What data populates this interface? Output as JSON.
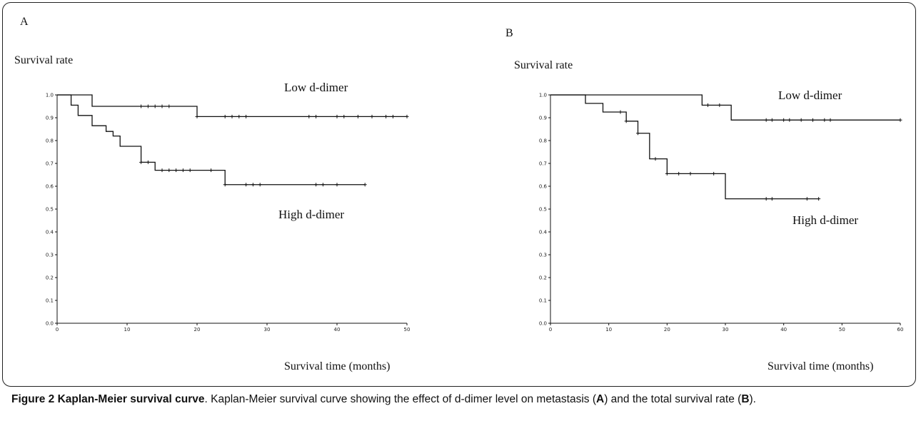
{
  "caption": {
    "label": "Figure 2 Kaplan-Meier survival curve",
    "text_1": ". Kaplan-Meier survival curve showing the effect of d-dimer level on metastasis (",
    "ref_a": "A",
    "text_2": ") and the total survival rate (",
    "ref_b": "B",
    "text_3": ")."
  },
  "chart_data": [
    {
      "type": "line",
      "panel": "A",
      "ylabel": "Survival rate",
      "xlabel": "Survival time (months)",
      "xlim": [
        0,
        50
      ],
      "ylim": [
        0,
        1.0
      ],
      "x_ticks": [
        0,
        10,
        20,
        30,
        40,
        50
      ],
      "x_tick_labels": [
        "0",
        "10",
        "20",
        "30",
        "40",
        "50"
      ],
      "y_ticks": [
        0.0,
        0.1,
        0.2,
        0.3,
        0.4,
        0.5,
        0.6,
        0.7,
        0.8,
        0.9,
        1.0
      ],
      "y_tick_labels": [
        "0.0",
        "0.1",
        "0.2",
        "0.3",
        "0.4",
        "0.5",
        "0.6",
        "0.7",
        "0.8",
        "0.9",
        "1.0"
      ],
      "series": [
        {
          "name": "Low d-dimer",
          "steps": [
            [
              0,
              1.0
            ],
            [
              5,
              0.95
            ],
            [
              20,
              0.905
            ],
            [
              50,
              0.905
            ]
          ],
          "censored": [
            12,
            13,
            14,
            15,
            16,
            20,
            24,
            25,
            26,
            27,
            36,
            37,
            40,
            41,
            43,
            45,
            47,
            48,
            50
          ]
        },
        {
          "name": "High d-dimer",
          "steps": [
            [
              0,
              1.0
            ],
            [
              2,
              0.955
            ],
            [
              3,
              0.91
            ],
            [
              5,
              0.865
            ],
            [
              7,
              0.84
            ],
            [
              8,
              0.82
            ],
            [
              9,
              0.775
            ],
            [
              12,
              0.705
            ],
            [
              14,
              0.67
            ],
            [
              24,
              0.607
            ],
            [
              44,
              0.607
            ]
          ],
          "censored": [
            12,
            13,
            15,
            16,
            17,
            18,
            19,
            22,
            24,
            27,
            28,
            29,
            37,
            38,
            40,
            44
          ]
        }
      ]
    },
    {
      "type": "line",
      "panel": "B",
      "ylabel": "Survival rate",
      "xlabel": "Survival time (months)",
      "xlim": [
        0,
        60
      ],
      "ylim": [
        0,
        1.0
      ],
      "x_ticks": [
        0,
        10,
        20,
        30,
        40,
        50,
        60
      ],
      "x_tick_labels": [
        "0",
        "10",
        "20",
        "30",
        "40",
        "50",
        "60"
      ],
      "y_ticks": [
        0.0,
        0.1,
        0.2,
        0.3,
        0.4,
        0.5,
        0.6,
        0.7,
        0.8,
        0.9,
        1.0
      ],
      "y_tick_labels": [
        "0.0",
        "0.1",
        "0.2",
        "0.3",
        "0.4",
        "0.5",
        "0.6",
        "0.7",
        "0.8",
        "0.9",
        "1.0"
      ],
      "series": [
        {
          "name": "Low d-dimer",
          "steps": [
            [
              0,
              1.0
            ],
            [
              26,
              0.955
            ],
            [
              31,
              0.89
            ],
            [
              60,
              0.89
            ]
          ],
          "censored": [
            27,
            29,
            37,
            38,
            40,
            41,
            43,
            45,
            47,
            48,
            60
          ]
        },
        {
          "name": "High d-dimer",
          "steps": [
            [
              0,
              1.0
            ],
            [
              6,
              0.963
            ],
            [
              9,
              0.925
            ],
            [
              13,
              0.885
            ],
            [
              15,
              0.832
            ],
            [
              17,
              0.72
            ],
            [
              20,
              0.655
            ],
            [
              30,
              0.545
            ],
            [
              46,
              0.545
            ]
          ],
          "censored": [
            12,
            13,
            15,
            18,
            20,
            22,
            24,
            28,
            37,
            38,
            44,
            46
          ]
        }
      ]
    }
  ]
}
